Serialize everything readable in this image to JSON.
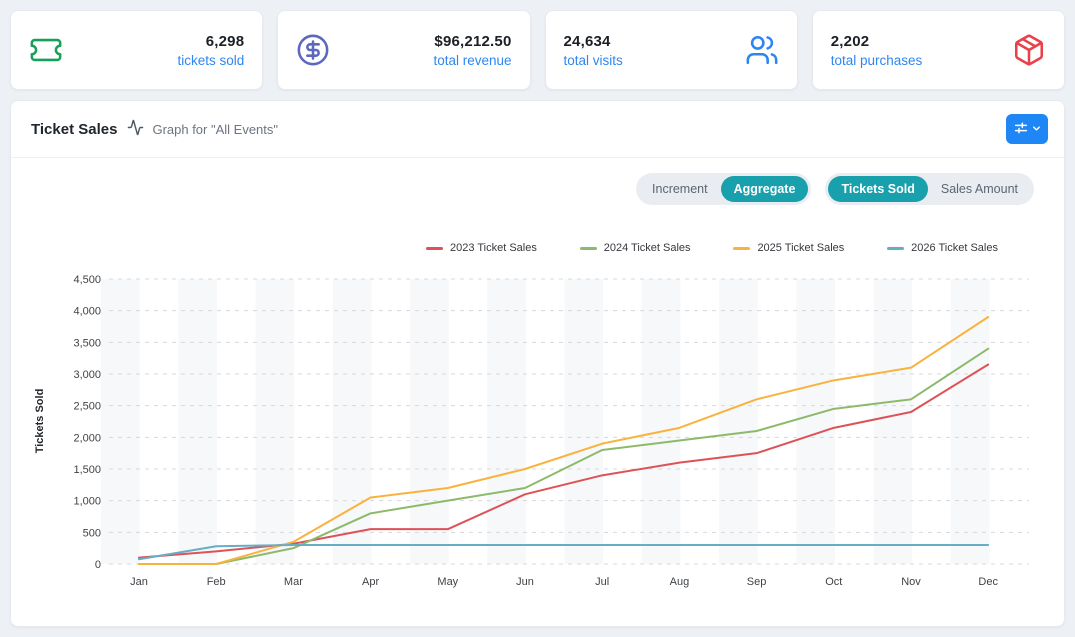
{
  "stats": [
    {
      "value": "6,298",
      "label": "tickets sold",
      "icon": "ticket-icon",
      "icon_color": "#18a058"
    },
    {
      "value": "$96,212.50",
      "label": "total revenue",
      "icon": "dollar-circle-icon",
      "icon_color": "#5b68c0"
    },
    {
      "value": "24,634",
      "label": "total visits",
      "icon": "users-icon",
      "icon_color": "#2b85f2"
    },
    {
      "value": "2,202",
      "label": "total purchases",
      "icon": "package-icon",
      "icon_color": "#e8414b"
    }
  ],
  "panel": {
    "title": "Ticket Sales",
    "subtitle": "Graph for \"All Events\"",
    "controls": {
      "mode": {
        "options": [
          "Increment",
          "Aggregate"
        ],
        "active": "Aggregate"
      },
      "metric": {
        "options": [
          "Tickets Sold",
          "Sales Amount"
        ],
        "active": "Tickets Sold"
      }
    },
    "filter_button_color": "#1e86f5"
  },
  "chart_data": {
    "type": "line",
    "title": "Ticket Sales",
    "x": [
      "Jan",
      "Feb",
      "Mar",
      "Apr",
      "May",
      "Jun",
      "Jul",
      "Aug",
      "Sep",
      "Oct",
      "Nov",
      "Dec"
    ],
    "series": [
      {
        "name": "2023 Ticket Sales",
        "color": "#dd5257",
        "values": [
          100,
          200,
          320,
          550,
          550,
          1100,
          1400,
          1600,
          1750,
          2150,
          2400,
          3150
        ]
      },
      {
        "name": "2024 Ticket Sales",
        "color": "#8cba6a",
        "values": [
          0,
          0,
          250,
          800,
          1000,
          1200,
          1800,
          1950,
          2100,
          2450,
          2600,
          3400
        ]
      },
      {
        "name": "2025 Ticket Sales",
        "color": "#fab23e",
        "values": [
          0,
          0,
          350,
          1050,
          1200,
          1500,
          1900,
          2150,
          2600,
          2900,
          3100,
          3900
        ]
      },
      {
        "name": "2026 Ticket Sales",
        "color": "#65aec5",
        "values": [
          75,
          280,
          300,
          300,
          300,
          300,
          300,
          300,
          300,
          300,
          300,
          300
        ]
      }
    ],
    "xlabel": "",
    "ylabel": "Tickets Sold",
    "ylim": [
      0,
      4500
    ],
    "ytick_step": 500,
    "grid": "dashed-horizontal",
    "plot_stripes": true,
    "legend_position": "top"
  }
}
